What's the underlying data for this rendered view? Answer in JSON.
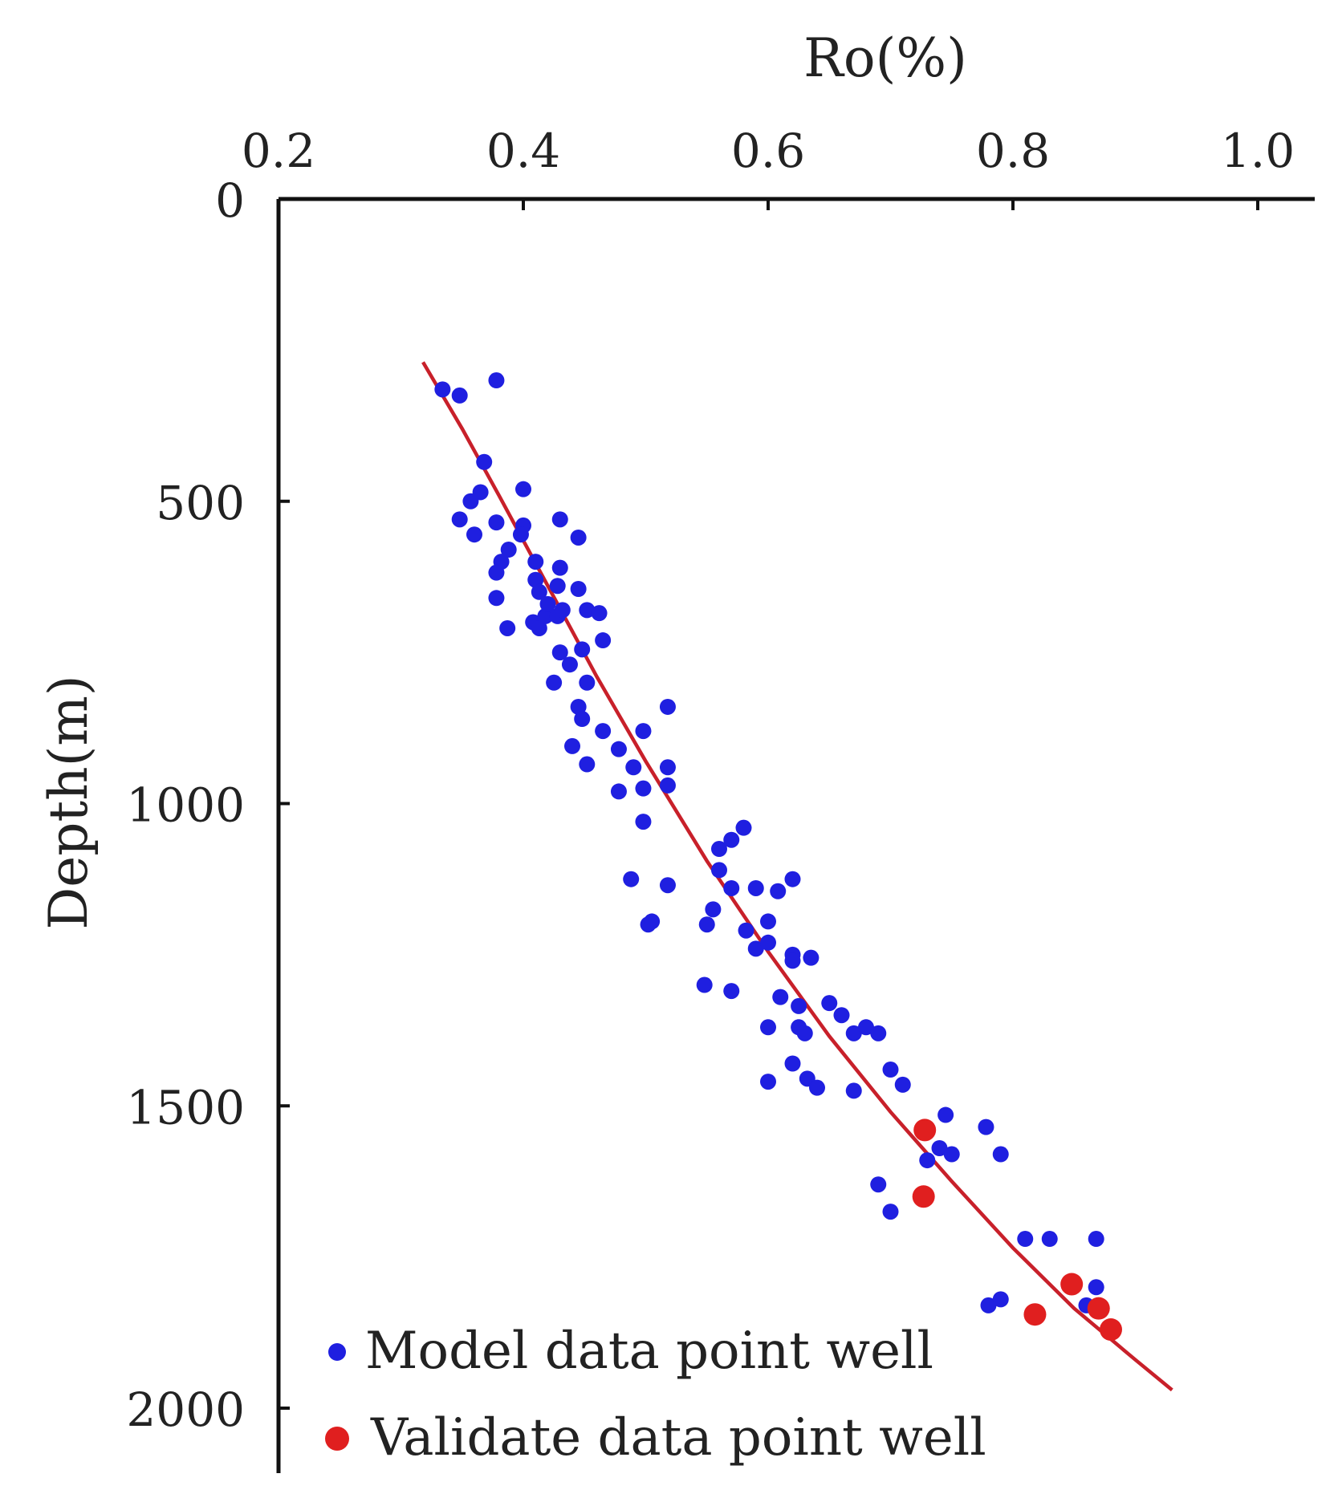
{
  "chart_data": {
    "type": "scatter",
    "title": "",
    "xlabel": "Ro(%)",
    "ylabel": "Depth(m)",
    "x_axis_position": "top",
    "y_axis_inverted": true,
    "xlim": [
      0.2,
      1.02
    ],
    "ylim": [
      0,
      2100
    ],
    "x_ticks": [
      0.2,
      0.4,
      0.6,
      0.8,
      1.0
    ],
    "x_tick_labels": [
      "0.2",
      "0.4",
      "0.6",
      "0.8",
      "1.0"
    ],
    "y_ticks": [
      0,
      500,
      1000,
      1500,
      2000
    ],
    "y_tick_labels": [
      "0",
      "500",
      "1000",
      "1500",
      "2000"
    ],
    "grid": false,
    "legend_position": "bottom-left",
    "series": [
      {
        "name": "Model  data point well",
        "kind": "scatter",
        "color": "#1f1fe0",
        "points": [
          [
            0.334,
            315
          ],
          [
            0.348,
            325
          ],
          [
            0.378,
            300
          ],
          [
            0.368,
            435
          ],
          [
            0.365,
            485
          ],
          [
            0.357,
            500
          ],
          [
            0.348,
            530
          ],
          [
            0.36,
            555
          ],
          [
            0.378,
            535
          ],
          [
            0.4,
            480
          ],
          [
            0.4,
            540
          ],
          [
            0.398,
            555
          ],
          [
            0.388,
            580
          ],
          [
            0.382,
            600
          ],
          [
            0.378,
            618
          ],
          [
            0.378,
            660
          ],
          [
            0.387,
            710
          ],
          [
            0.41,
            600
          ],
          [
            0.41,
            630
          ],
          [
            0.413,
            650
          ],
          [
            0.408,
            700
          ],
          [
            0.413,
            710
          ],
          [
            0.418,
            690
          ],
          [
            0.42,
            670
          ],
          [
            0.428,
            640
          ],
          [
            0.43,
            610
          ],
          [
            0.43,
            530
          ],
          [
            0.428,
            690
          ],
          [
            0.432,
            680
          ],
          [
            0.445,
            560
          ],
          [
            0.445,
            645
          ],
          [
            0.452,
            680
          ],
          [
            0.462,
            685
          ],
          [
            0.465,
            730
          ],
          [
            0.448,
            745
          ],
          [
            0.43,
            750
          ],
          [
            0.438,
            770
          ],
          [
            0.425,
            800
          ],
          [
            0.452,
            800
          ],
          [
            0.445,
            840
          ],
          [
            0.448,
            860
          ],
          [
            0.44,
            905
          ],
          [
            0.452,
            935
          ],
          [
            0.465,
            880
          ],
          [
            0.478,
            910
          ],
          [
            0.49,
            940
          ],
          [
            0.498,
            975
          ],
          [
            0.478,
            980
          ],
          [
            0.498,
            1030
          ],
          [
            0.498,
            880
          ],
          [
            0.518,
            840
          ],
          [
            0.518,
            940
          ],
          [
            0.518,
            970
          ],
          [
            0.518,
            1135
          ],
          [
            0.488,
            1125
          ],
          [
            0.502,
            1200
          ],
          [
            0.505,
            1195
          ],
          [
            0.55,
            1200
          ],
          [
            0.555,
            1175
          ],
          [
            0.56,
            1110
          ],
          [
            0.56,
            1075
          ],
          [
            0.57,
            1060
          ],
          [
            0.58,
            1040
          ],
          [
            0.57,
            1140
          ],
          [
            0.59,
            1140
          ],
          [
            0.608,
            1145
          ],
          [
            0.62,
            1125
          ],
          [
            0.582,
            1210
          ],
          [
            0.59,
            1240
          ],
          [
            0.6,
            1195
          ],
          [
            0.6,
            1230
          ],
          [
            0.62,
            1250
          ],
          [
            0.62,
            1260
          ],
          [
            0.635,
            1255
          ],
          [
            0.548,
            1300
          ],
          [
            0.57,
            1310
          ],
          [
            0.61,
            1320
          ],
          [
            0.625,
            1335
          ],
          [
            0.625,
            1370
          ],
          [
            0.63,
            1380
          ],
          [
            0.6,
            1370
          ],
          [
            0.65,
            1330
          ],
          [
            0.66,
            1350
          ],
          [
            0.67,
            1380
          ],
          [
            0.68,
            1370
          ],
          [
            0.69,
            1380
          ],
          [
            0.7,
            1440
          ],
          [
            0.71,
            1465
          ],
          [
            0.67,
            1475
          ],
          [
            0.62,
            1430
          ],
          [
            0.632,
            1455
          ],
          [
            0.64,
            1470
          ],
          [
            0.6,
            1460
          ],
          [
            0.745,
            1515
          ],
          [
            0.778,
            1535
          ],
          [
            0.73,
            1590
          ],
          [
            0.74,
            1570
          ],
          [
            0.75,
            1580
          ],
          [
            0.79,
            1580
          ],
          [
            0.69,
            1630
          ],
          [
            0.7,
            1675
          ],
          [
            0.81,
            1720
          ],
          [
            0.83,
            1720
          ],
          [
            0.868,
            1720
          ],
          [
            0.868,
            1800
          ],
          [
            0.78,
            1830
          ],
          [
            0.79,
            1820
          ],
          [
            0.86,
            1830
          ]
        ]
      },
      {
        "name": "Validate  data point well",
        "kind": "scatter",
        "color": "#e01f1f",
        "points": [
          [
            0.728,
            1540
          ],
          [
            0.727,
            1650
          ],
          [
            0.848,
            1795
          ],
          [
            0.818,
            1845
          ],
          [
            0.87,
            1835
          ],
          [
            0.88,
            1870
          ]
        ]
      },
      {
        "kind": "line",
        "color": "#c8202a",
        "points": [
          [
            0.318,
            270
          ],
          [
            0.35,
            380
          ],
          [
            0.38,
            490
          ],
          [
            0.42,
            640
          ],
          [
            0.46,
            790
          ],
          [
            0.5,
            930
          ],
          [
            0.55,
            1095
          ],
          [
            0.6,
            1245
          ],
          [
            0.65,
            1385
          ],
          [
            0.7,
            1510
          ],
          [
            0.75,
            1625
          ],
          [
            0.8,
            1735
          ],
          [
            0.85,
            1835
          ],
          [
            0.9,
            1920
          ],
          [
            0.93,
            1970
          ]
        ]
      }
    ]
  }
}
